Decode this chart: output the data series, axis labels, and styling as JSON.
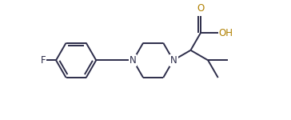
{
  "background_color": "#ffffff",
  "line_color": "#2d2d4a",
  "o_color": "#b08000",
  "n_color": "#2d2d4a",
  "f_color": "#2d2d4a",
  "oh_color": "#b08000",
  "line_width": 1.4,
  "figsize": [
    3.64,
    1.5
  ],
  "dpi": 100,
  "xlim": [
    0,
    9.5
  ],
  "ylim": [
    0.2,
    4.8
  ]
}
